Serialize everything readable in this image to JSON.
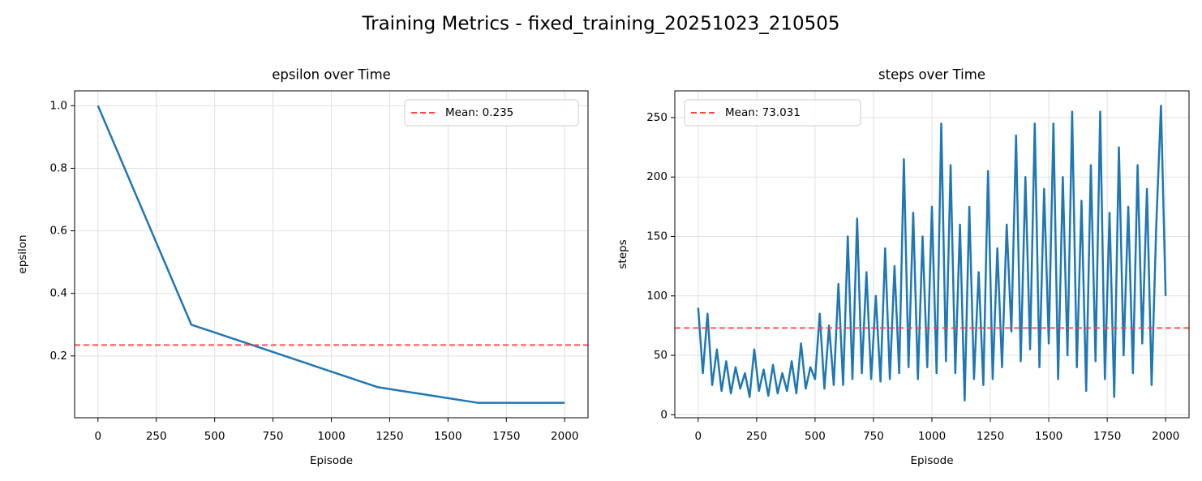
{
  "title": "Training Metrics - fixed_training_20251023_210505",
  "chart_data": [
    {
      "type": "line",
      "title": "epsilon over Time",
      "xlabel": "Episode",
      "ylabel": "epsilon",
      "x": [
        0,
        400,
        1200,
        1630,
        2000
      ],
      "series": [
        {
          "color": "#1f77b4",
          "values": [
            1.0,
            0.3,
            0.1,
            0.05,
            0.05
          ]
        }
      ],
      "hlines": [
        {
          "name": "Mean: 0.235",
          "value": 0.235,
          "color": "#ff4444",
          "dashed": true
        }
      ],
      "xlim": [
        -100,
        2100
      ],
      "xticks": [
        0,
        250,
        500,
        750,
        1000,
        1250,
        1500,
        1750,
        2000
      ],
      "ylim": [
        0.0025,
        1.0475
      ],
      "yticks": [
        0.2,
        0.4,
        0.6,
        0.8,
        {
          "value": 1,
          "label": "1.0"
        }
      ],
      "grid": true,
      "legend": "upper right"
    },
    {
      "type": "line",
      "title": "steps over Time",
      "xlabel": "Episode",
      "ylabel": "steps",
      "x": [
        0,
        20,
        40,
        60,
        80,
        100,
        120,
        140,
        160,
        180,
        200,
        220,
        240,
        260,
        280,
        300,
        320,
        340,
        360,
        380,
        400,
        420,
        440,
        460,
        480,
        500,
        520,
        540,
        560,
        580,
        600,
        620,
        640,
        660,
        680,
        700,
        720,
        740,
        760,
        780,
        800,
        820,
        840,
        860,
        880,
        900,
        920,
        940,
        960,
        980,
        1000,
        1020,
        1040,
        1060,
        1080,
        1100,
        1120,
        1140,
        1160,
        1180,
        1200,
        1220,
        1240,
        1260,
        1280,
        1300,
        1320,
        1340,
        1360,
        1380,
        1400,
        1420,
        1440,
        1460,
        1480,
        1500,
        1520,
        1540,
        1560,
        1580,
        1600,
        1620,
        1640,
        1660,
        1680,
        1700,
        1720,
        1740,
        1760,
        1780,
        1800,
        1820,
        1840,
        1860,
        1880,
        1900,
        1920,
        1940,
        1960,
        1980,
        2000
      ],
      "series": [
        {
          "color": "#1f77b4",
          "values": [
            90,
            35,
            85,
            25,
            55,
            20,
            45,
            18,
            40,
            22,
            35,
            15,
            55,
            20,
            38,
            16,
            42,
            18,
            35,
            20,
            45,
            18,
            60,
            22,
            40,
            30,
            85,
            22,
            75,
            25,
            110,
            25,
            150,
            30,
            165,
            35,
            120,
            30,
            100,
            28,
            140,
            30,
            125,
            35,
            215,
            40,
            170,
            30,
            150,
            40,
            175,
            35,
            245,
            45,
            210,
            35,
            160,
            12,
            175,
            30,
            120,
            25,
            205,
            30,
            140,
            40,
            160,
            70,
            235,
            45,
            200,
            55,
            245,
            40,
            190,
            60,
            245,
            30,
            200,
            50,
            255,
            40,
            180,
            20,
            210,
            45,
            255,
            30,
            170,
            15,
            225,
            50,
            175,
            35,
            210,
            60,
            190,
            25,
            160,
            260,
            100
          ]
        }
      ],
      "hlines": [
        {
          "name": "Mean: 73.031",
          "value": 73.031,
          "color": "#ff4444",
          "dashed": true
        }
      ],
      "xlim": [
        -100,
        2100
      ],
      "xticks": [
        0,
        250,
        500,
        750,
        1000,
        1250,
        1500,
        1750,
        2000
      ],
      "ylim": [
        -2.5,
        272.5
      ],
      "yticks": [
        0,
        50,
        100,
        150,
        200,
        250
      ],
      "grid": true,
      "legend": "upper left"
    }
  ]
}
